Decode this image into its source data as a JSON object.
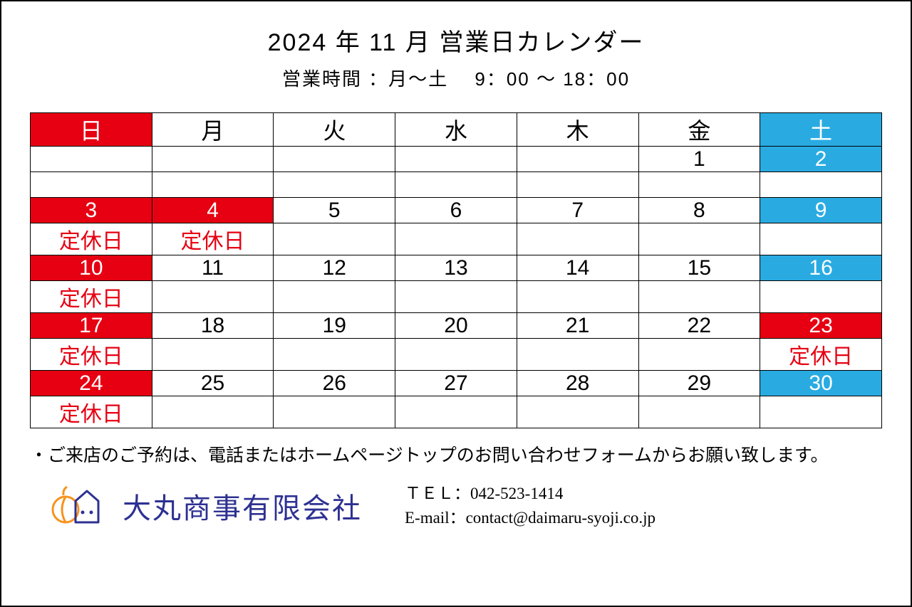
{
  "title": "2024 年 11 月 営業日カレンダー",
  "subtitle": "営業時間 ：月～土　 9：00 ～ 18：00",
  "colors": {
    "red": "#e60012",
    "blue": "#29abe2",
    "navy": "#2e3192",
    "orange": "#f7931e",
    "white": "#ffffff",
    "black": "#000000"
  },
  "dayHeaders": [
    {
      "label": "日",
      "style": "bg-red"
    },
    {
      "label": "月",
      "style": ""
    },
    {
      "label": "火",
      "style": ""
    },
    {
      "label": "水",
      "style": ""
    },
    {
      "label": "木",
      "style": ""
    },
    {
      "label": "金",
      "style": ""
    },
    {
      "label": "土",
      "style": "bg-blue"
    }
  ],
  "weeks": [
    {
      "days": [
        {
          "num": "",
          "style": ""
        },
        {
          "num": "",
          "style": ""
        },
        {
          "num": "",
          "style": ""
        },
        {
          "num": "",
          "style": ""
        },
        {
          "num": "",
          "style": ""
        },
        {
          "num": "1",
          "style": ""
        },
        {
          "num": "2",
          "style": "bg-blue"
        }
      ],
      "notes": [
        {
          "text": "",
          "style": ""
        },
        {
          "text": "",
          "style": ""
        },
        {
          "text": "",
          "style": ""
        },
        {
          "text": "",
          "style": ""
        },
        {
          "text": "",
          "style": ""
        },
        {
          "text": "",
          "style": ""
        },
        {
          "text": "",
          "style": ""
        }
      ]
    },
    {
      "days": [
        {
          "num": "3",
          "style": "bg-red"
        },
        {
          "num": "4",
          "style": "bg-red"
        },
        {
          "num": "5",
          "style": ""
        },
        {
          "num": "6",
          "style": ""
        },
        {
          "num": "7",
          "style": ""
        },
        {
          "num": "8",
          "style": ""
        },
        {
          "num": "9",
          "style": "bg-blue"
        }
      ],
      "notes": [
        {
          "text": "定休日",
          "style": "txt-red"
        },
        {
          "text": "定休日",
          "style": "txt-red"
        },
        {
          "text": "",
          "style": ""
        },
        {
          "text": "",
          "style": ""
        },
        {
          "text": "",
          "style": ""
        },
        {
          "text": "",
          "style": ""
        },
        {
          "text": "",
          "style": ""
        }
      ]
    },
    {
      "days": [
        {
          "num": "10",
          "style": "bg-red"
        },
        {
          "num": "11",
          "style": ""
        },
        {
          "num": "12",
          "style": ""
        },
        {
          "num": "13",
          "style": ""
        },
        {
          "num": "14",
          "style": ""
        },
        {
          "num": "15",
          "style": ""
        },
        {
          "num": "16",
          "style": "bg-blue"
        }
      ],
      "notes": [
        {
          "text": "定休日",
          "style": "txt-red"
        },
        {
          "text": "",
          "style": ""
        },
        {
          "text": "",
          "style": ""
        },
        {
          "text": "",
          "style": ""
        },
        {
          "text": "",
          "style": ""
        },
        {
          "text": "",
          "style": ""
        },
        {
          "text": "",
          "style": ""
        }
      ]
    },
    {
      "days": [
        {
          "num": "17",
          "style": "bg-red"
        },
        {
          "num": "18",
          "style": ""
        },
        {
          "num": "19",
          "style": ""
        },
        {
          "num": "20",
          "style": ""
        },
        {
          "num": "21",
          "style": ""
        },
        {
          "num": "22",
          "style": ""
        },
        {
          "num": "23",
          "style": "bg-red"
        }
      ],
      "notes": [
        {
          "text": "定休日",
          "style": "txt-red"
        },
        {
          "text": "",
          "style": ""
        },
        {
          "text": "",
          "style": ""
        },
        {
          "text": "",
          "style": ""
        },
        {
          "text": "",
          "style": ""
        },
        {
          "text": "",
          "style": ""
        },
        {
          "text": "定休日",
          "style": "txt-red"
        }
      ]
    },
    {
      "days": [
        {
          "num": "24",
          "style": "bg-red"
        },
        {
          "num": "25",
          "style": ""
        },
        {
          "num": "26",
          "style": ""
        },
        {
          "num": "27",
          "style": ""
        },
        {
          "num": "28",
          "style": ""
        },
        {
          "num": "29",
          "style": ""
        },
        {
          "num": "30",
          "style": "bg-blue"
        }
      ],
      "notes": [
        {
          "text": "定休日",
          "style": "txt-red"
        },
        {
          "text": "",
          "style": ""
        },
        {
          "text": "",
          "style": ""
        },
        {
          "text": "",
          "style": ""
        },
        {
          "text": "",
          "style": ""
        },
        {
          "text": "",
          "style": ""
        },
        {
          "text": "",
          "style": ""
        }
      ]
    }
  ],
  "footerNote": "・ご来店のご予約は、電話またはホームページトップのお問い合わせフォームからお願い致します。",
  "company": "大丸商事有限会社",
  "contact": {
    "tel": "ＴＥＬ：042-523-1414",
    "email": "E-mail：contact@daimaru-syoji.co.jp"
  }
}
